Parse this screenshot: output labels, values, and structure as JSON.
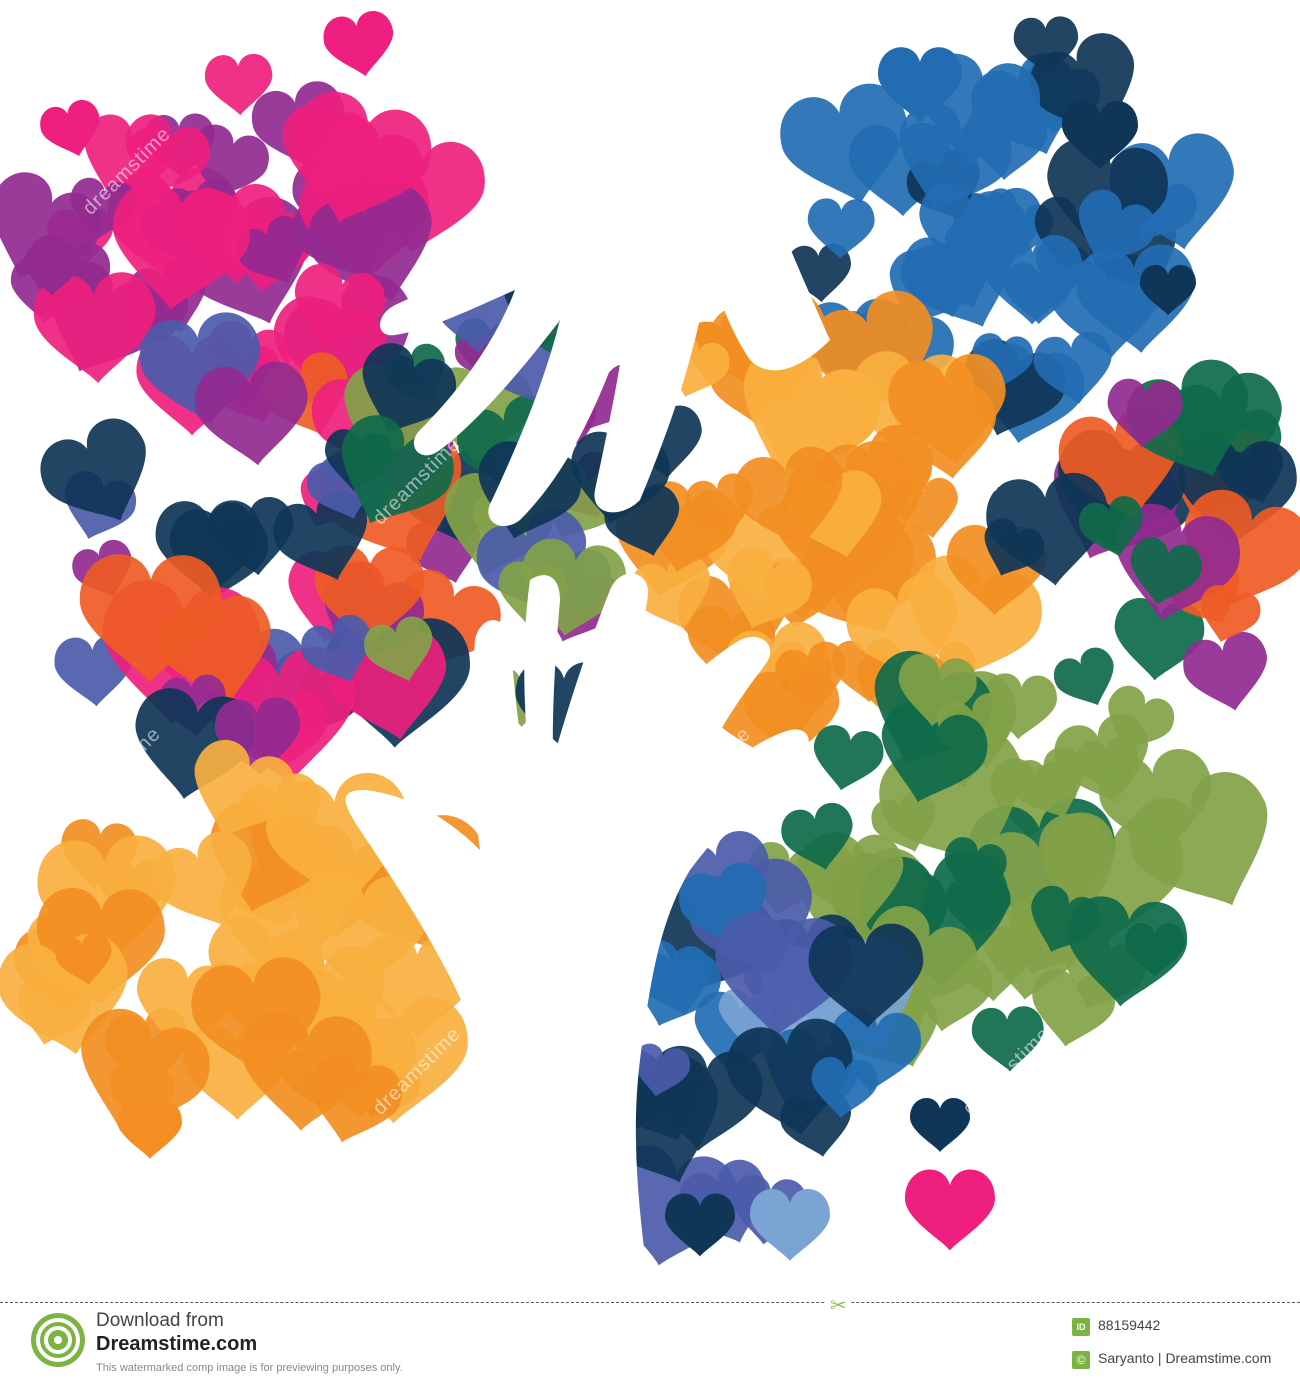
{
  "colors": {
    "pink": "#ee1f7e",
    "purple": "#922a90",
    "dark_navy": "#0f3557",
    "royal_blue": "#4b5baa",
    "mid_blue": "#226cb2",
    "light_blue": "#7aa4d3",
    "orange": "#f28e22",
    "light_orange": "#f9b03f",
    "red_orange": "#ef5b24",
    "teal": "#0f6a4a",
    "olive_green": "#82a248",
    "white": "#ffffff",
    "watermark_green": "#7cb342"
  },
  "watermark": {
    "repeated_text": "dreamstime"
  },
  "footer": {
    "download_label": "Download from",
    "brand": "Dreamstime.com",
    "disclaimer": "This watermarked comp image is for previewing purposes only.",
    "id_badge": "ID",
    "id_value": "88159442",
    "copyright_icon": "copyright-icon",
    "credit": "Saryanto | Dreamstime.com"
  }
}
